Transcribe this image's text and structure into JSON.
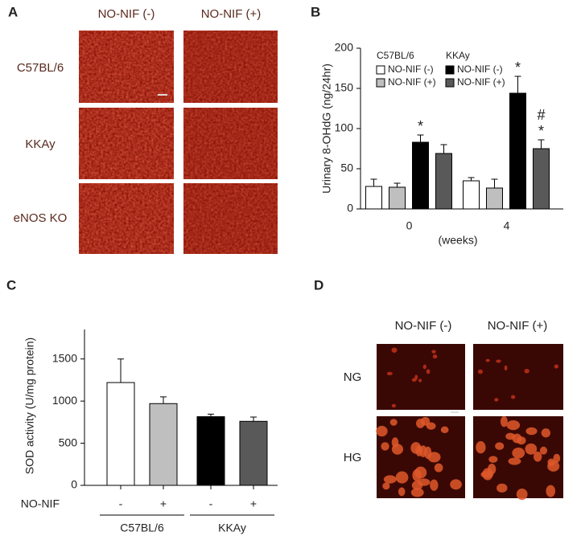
{
  "panel_labels": [
    "A",
    "B",
    "C",
    "D"
  ],
  "panel_a": {
    "columns": [
      "NO-NIF (-)",
      "NO-NIF (+)"
    ],
    "rows": [
      "C57BL/6",
      "KKAy",
      "eNOS KO"
    ]
  },
  "panel_d": {
    "columns": [
      "NO-NIF (-)",
      "NO-NIF (+)"
    ],
    "rows": [
      "NG",
      "HG"
    ]
  },
  "chart_data": [
    {
      "type": "bar",
      "y_label": "Urinary 8-OHdG (ng/24hr)",
      "x_label": "(weeks)",
      "categories": [
        "0",
        "4"
      ],
      "ylim": [
        0,
        200
      ],
      "yticks": [
        0,
        50,
        100,
        150,
        200
      ],
      "legend_groups": [
        "C57BL/6",
        "KKAy"
      ],
      "series": [
        {
          "name": "NO-NIF (-)",
          "group": "C57BL/6",
          "color": "#ffffff",
          "values": [
            28,
            35
          ],
          "errors": [
            9,
            4
          ]
        },
        {
          "name": "NO-NIF (+)",
          "group": "C57BL/6",
          "color": "#bfbfbf",
          "values": [
            27,
            26
          ],
          "errors": [
            5,
            11
          ]
        },
        {
          "name": "NO-NIF (-)",
          "group": "KKAy",
          "color": "#000000",
          "values": [
            83,
            144
          ],
          "errors": [
            9,
            21
          ],
          "annotations": [
            [
              "*"
            ],
            [
              "*"
            ]
          ]
        },
        {
          "name": "NO-NIF (+)",
          "group": "KKAy",
          "color": "#595959",
          "values": [
            69,
            75
          ],
          "errors": [
            11,
            11
          ],
          "annotations": [
            null,
            [
              "#",
              "*"
            ]
          ]
        }
      ]
    },
    {
      "type": "bar",
      "y_label": "SOD activity (U/mg protein)",
      "row_label": "NO-NIF",
      "categories": [
        "-",
        "+",
        "-",
        "+"
      ],
      "groups": [
        "C57BL/6",
        "KKAy"
      ],
      "ylim": [
        0,
        1850
      ],
      "yticks": [
        0,
        500,
        1000,
        1500
      ],
      "values": [
        1220,
        970,
        815,
        760
      ],
      "errors": [
        280,
        80,
        30,
        50
      ],
      "colors": [
        "#ffffff",
        "#bfbfbf",
        "#000000",
        "#595959"
      ]
    }
  ]
}
